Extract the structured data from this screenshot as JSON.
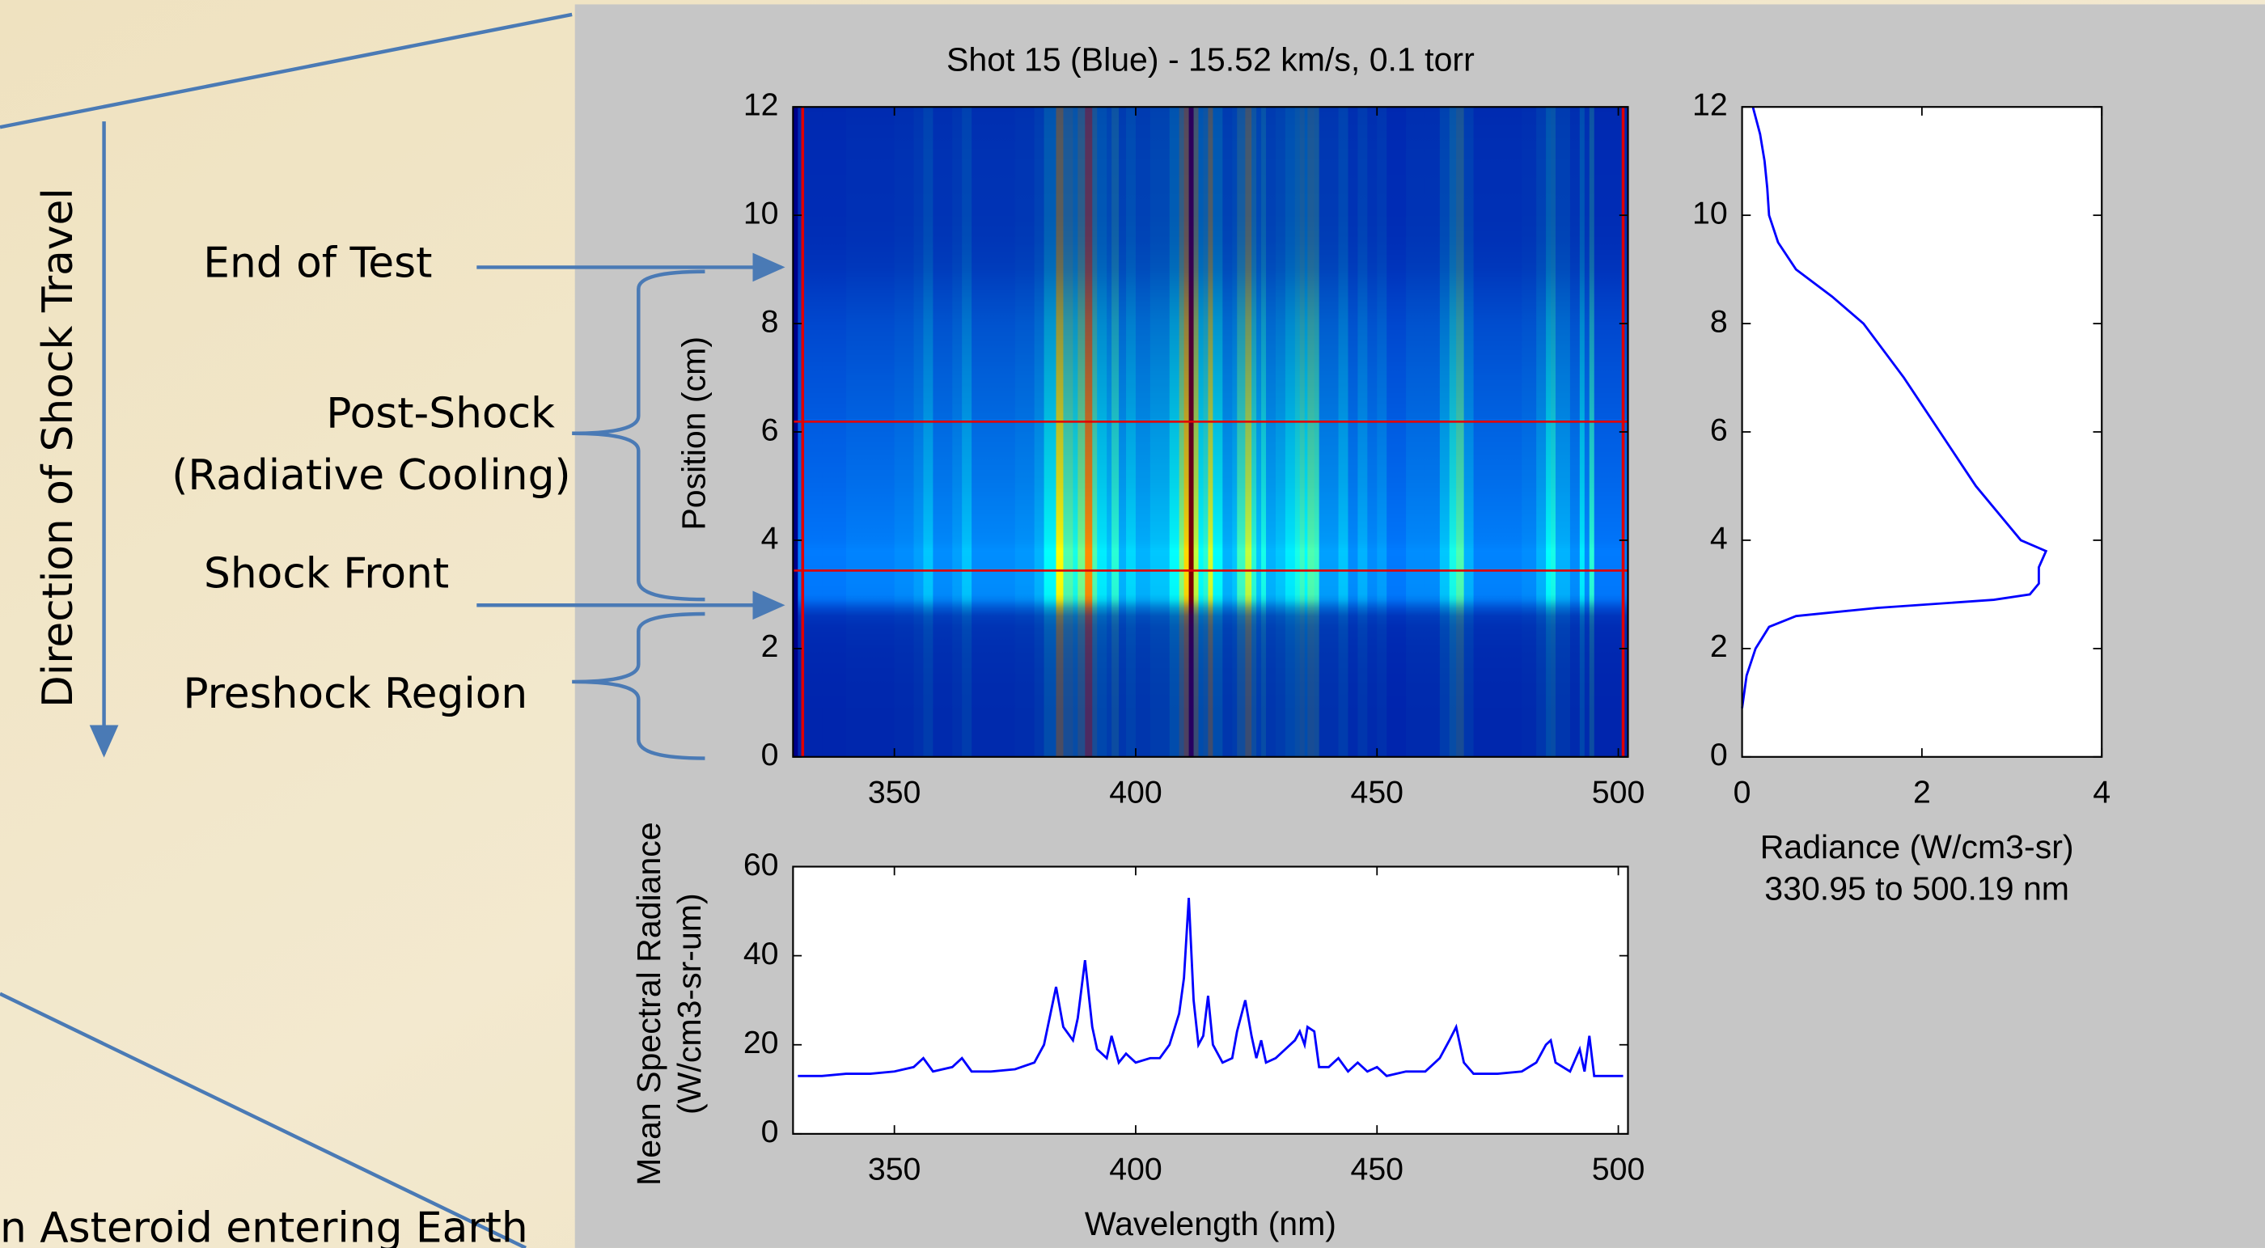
{
  "annotations": {
    "direction": "Direction of Shock Travel",
    "end_of_test": "End of Test",
    "post_shock": "Post-Shock",
    "post_shock_note": "(Radiative Cooling)",
    "shock_front": "Shock Front",
    "preshock": "Preshock Region",
    "caption": "n Asteroid entering Earth"
  },
  "chart_data": [
    {
      "type": "heatmap",
      "title": "Shot 15 (Blue) - 15.52 km/s, 0.1 torr",
      "ylabel": "Position (cm)",
      "xlim": [
        329,
        502
      ],
      "xticks": [
        350,
        400,
        450,
        500
      ],
      "ylim": [
        0,
        12
      ],
      "yticks": [
        0,
        2,
        4,
        6,
        8,
        10,
        12
      ],
      "hlines": [
        3.44,
        6.19
      ],
      "vlines": [
        331,
        501
      ],
      "line_color": "#e00000",
      "background": "#00008b",
      "colormap": "jet"
    },
    {
      "type": "line",
      "xlabel": [
        "Radiance (W/cm3-sr)",
        "330.95 to 500.19 nm"
      ],
      "positions": [
        0.9,
        1.5,
        2.0,
        2.4,
        2.6,
        2.75,
        2.9,
        3.0,
        3.2,
        3.5,
        3.8,
        4.0,
        5.0,
        6.0,
        7.0,
        8.0,
        8.5,
        9.0,
        9.5,
        10.0,
        10.5,
        11.0,
        11.5,
        12.0
      ],
      "values": [
        0.0,
        0.05,
        0.15,
        0.3,
        0.6,
        1.5,
        2.8,
        3.2,
        3.3,
        3.3,
        3.38,
        3.1,
        2.6,
        2.2,
        1.8,
        1.35,
        1.0,
        0.6,
        0.4,
        0.3,
        0.28,
        0.25,
        0.2,
        0.12
      ],
      "color": "#0000ff",
      "xlim": [
        0,
        4
      ],
      "xticks": [
        0,
        2,
        4
      ],
      "ylim": [
        0,
        12
      ],
      "yticks": [
        0,
        2,
        4,
        6,
        8,
        10,
        12
      ]
    },
    {
      "type": "line",
      "xlabel": "Wavelength (nm)",
      "ylabel": [
        "Mean Spectral Radiance",
        "(W/cm3-sr-um)"
      ],
      "x": [
        330,
        335,
        340,
        345,
        350,
        354,
        356,
        358,
        362,
        364,
        366,
        370,
        375,
        379,
        381,
        383.5,
        385,
        387,
        388,
        389.5,
        391,
        392,
        394,
        395,
        396.5,
        398,
        400,
        403,
        405,
        407,
        409,
        410,
        411,
        412,
        413,
        414,
        415,
        416,
        418,
        420,
        421,
        422.7,
        424,
        425,
        426,
        427,
        429,
        431,
        433,
        434,
        435,
        435.6,
        437,
        438,
        440,
        442,
        444,
        446,
        448,
        450,
        452,
        456,
        460,
        463,
        465,
        466.4,
        468,
        470,
        475,
        480,
        483,
        485,
        486,
        487,
        490,
        492,
        493,
        494,
        495,
        498,
        501
      ],
      "values": [
        13,
        13,
        13.5,
        13.5,
        14,
        15,
        17,
        14,
        15,
        17,
        14,
        14,
        14.5,
        16,
        20,
        33,
        24,
        21,
        26,
        39,
        24,
        19,
        17,
        22,
        16,
        18,
        16,
        17,
        17,
        20,
        27,
        35,
        53,
        30,
        20,
        22,
        31,
        20,
        16,
        17,
        23,
        30,
        22,
        17,
        21,
        16,
        17,
        19,
        21,
        23,
        20,
        24,
        23,
        15,
        15,
        17,
        14,
        16,
        14,
        15,
        13,
        14,
        14,
        17,
        21,
        24,
        16,
        13.5,
        13.5,
        14,
        16,
        20,
        21,
        16,
        14,
        19,
        14,
        22,
        13,
        13,
        13
      ],
      "color": "#0000ff",
      "xlim": [
        329,
        502
      ],
      "xticks": [
        350,
        400,
        450,
        500
      ],
      "ylim": [
        0,
        60
      ],
      "yticks": [
        0,
        20,
        40,
        60
      ]
    }
  ]
}
